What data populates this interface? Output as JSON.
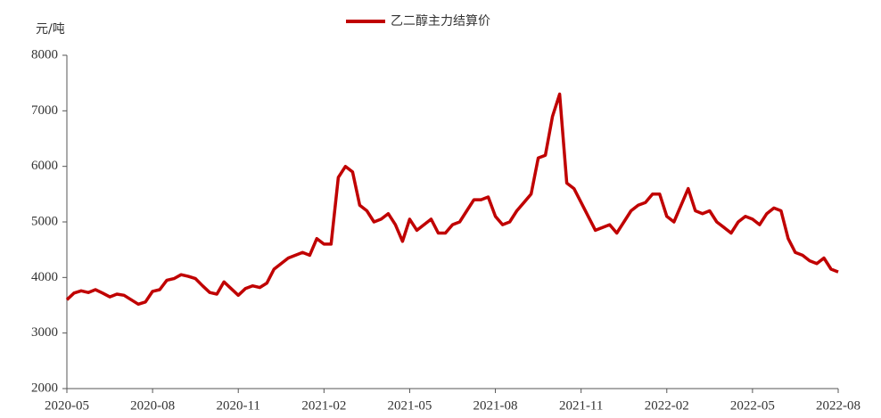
{
  "chart_data": {
    "type": "line",
    "y_label": "元/吨",
    "categories": [
      "2020-05",
      null,
      null,
      null,
      null,
      null,
      null,
      null,
      null,
      null,
      null,
      null,
      "2020-08",
      null,
      null,
      null,
      null,
      null,
      null,
      null,
      null,
      null,
      null,
      null,
      "2020-11",
      null,
      null,
      null,
      null,
      null,
      null,
      null,
      null,
      null,
      null,
      null,
      "2021-02",
      null,
      null,
      null,
      null,
      null,
      null,
      null,
      null,
      null,
      null,
      null,
      "2021-05",
      null,
      null,
      null,
      null,
      null,
      null,
      null,
      null,
      null,
      null,
      null,
      "2021-08",
      null,
      null,
      null,
      null,
      null,
      null,
      null,
      null,
      null,
      null,
      null,
      "2021-11",
      null,
      null,
      null,
      null,
      null,
      null,
      null,
      null,
      null,
      null,
      null,
      "2022-02",
      null,
      null,
      null,
      null,
      null,
      null,
      null,
      null,
      null,
      null,
      null,
      "2022-05",
      null,
      null,
      null,
      null,
      null,
      null,
      null,
      null,
      null,
      null,
      null,
      "2022-08"
    ],
    "series": [
      {
        "name": "乙二醇主力结算价",
        "color": "#c00000",
        "values": [
          3600,
          3720,
          3760,
          3730,
          3780,
          3720,
          3650,
          3700,
          3680,
          3600,
          3520,
          3560,
          3750,
          3780,
          3950,
          3980,
          4050,
          4020,
          3980,
          3850,
          3730,
          3700,
          3920,
          3800,
          3680,
          3800,
          3850,
          3820,
          3900,
          4150,
          4250,
          4350,
          4400,
          4450,
          4400,
          4700,
          4600,
          4600,
          5800,
          6000,
          5900,
          5300,
          5200,
          5000,
          5050,
          5150,
          4950,
          4650,
          5050,
          4850,
          4950,
          5050,
          4800,
          4800,
          4950,
          5000,
          5200,
          5400,
          5400,
          5450,
          5100,
          4950,
          5000,
          5200,
          5350,
          5500,
          6150,
          6200,
          6900,
          7300,
          5700,
          5600,
          5350,
          5100,
          4850,
          4900,
          4950,
          4800,
          5000,
          5200,
          5300,
          5350,
          5500,
          5500,
          5100,
          5000,
          5300,
          5600,
          5200,
          5150,
          5200,
          5000,
          4900,
          4800,
          5000,
          5100,
          5050,
          4950,
          5150,
          5250,
          5200,
          4700,
          4450,
          4400,
          4300,
          4250,
          4350,
          4150,
          4100
        ]
      }
    ],
    "ylim": [
      2000,
      8000
    ],
    "yticks": [
      2000,
      3000,
      4000,
      5000,
      6000,
      7000,
      8000
    ]
  }
}
